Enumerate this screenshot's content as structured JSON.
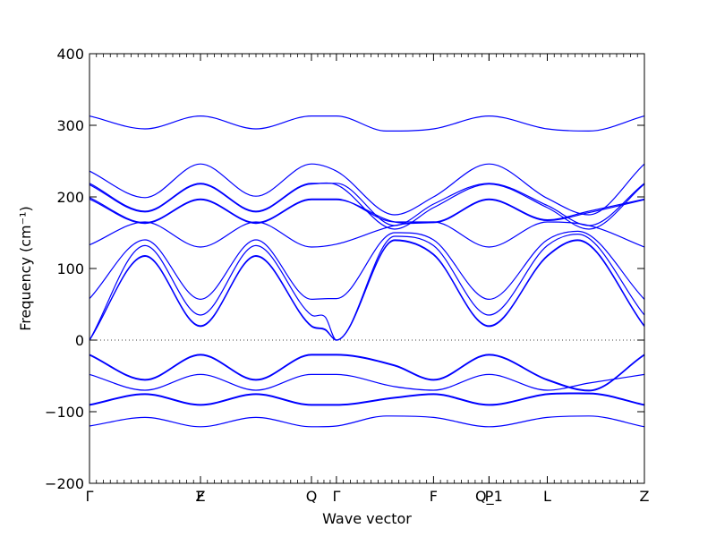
{
  "chart_data": {
    "type": "line",
    "xlabel": "Wave vector",
    "ylabel": "Frequency (cm⁻¹)",
    "ylim": [
      -200,
      400
    ],
    "yticks": [
      -200,
      -100,
      0,
      100,
      200,
      300,
      400
    ],
    "xlim": [
      0,
      1
    ],
    "grid": false,
    "zero_line": {
      "y": 0,
      "style": "dotted"
    },
    "line_color": "#0000ff",
    "high_symmetry_points": [
      {
        "label": "Γ",
        "x": 0.0
      },
      {
        "label": "Z",
        "x": 0.2
      },
      {
        "label": "F",
        "x": 0.2
      },
      {
        "label": "Q",
        "x": 0.4
      },
      {
        "label": "Γ",
        "x": 0.445
      },
      {
        "label": "F",
        "x": 0.62
      },
      {
        "label": "P",
        "x": 0.72
      },
      {
        "label": "Q_1",
        "x": 0.72
      },
      {
        "label": "L",
        "x": 0.825
      },
      {
        "label": "Z",
        "x": 1.0
      }
    ],
    "series": [
      {
        "x": [
          0,
          0.1,
          0.2,
          0.3,
          0.4,
          0.445,
          0.535,
          0.62,
          0.72,
          0.825,
          0.9,
          1.0
        ],
        "y": [
          313,
          295,
          313,
          295,
          313,
          313,
          292,
          295,
          313,
          295,
          292,
          313
        ]
      },
      {
        "x": [
          0,
          0.1,
          0.2,
          0.3,
          0.4,
          0.445,
          0.55,
          0.62,
          0.72,
          0.825,
          0.9,
          1.0
        ],
        "y": [
          236,
          199,
          246,
          201,
          246,
          236,
          175,
          200,
          246,
          198,
          175,
          246
        ]
      },
      {
        "x": [
          0,
          0.1,
          0.2,
          0.3,
          0.4,
          0.445,
          0.55,
          0.62,
          0.72,
          0.825,
          0.9,
          1.0
        ],
        "y": [
          219,
          180,
          219,
          180,
          219,
          219,
          160,
          190,
          219,
          188,
          160,
          219
        ]
      },
      {
        "x": [
          0,
          0.1,
          0.2,
          0.3,
          0.4,
          0.445,
          0.55,
          0.62,
          0.72,
          0.825,
          0.9,
          1.0
        ],
        "y": [
          217,
          179,
          218,
          179,
          218,
          217,
          155,
          185,
          218,
          185,
          155,
          218
        ]
      },
      {
        "x": [
          0,
          0.1,
          0.2,
          0.3,
          0.4,
          0.445,
          0.55,
          0.62,
          0.72,
          0.825,
          0.9,
          1.0
        ],
        "y": [
          199,
          164,
          197,
          164,
          197,
          197,
          165,
          165,
          197,
          168,
          180,
          197
        ]
      },
      {
        "x": [
          0,
          0.1,
          0.2,
          0.3,
          0.4,
          0.445,
          0.55,
          0.62,
          0.72,
          0.825,
          0.9,
          1.0
        ],
        "y": [
          197,
          163,
          196,
          163,
          196,
          196,
          165,
          164,
          196,
          167,
          178,
          196
        ]
      },
      {
        "x": [
          0,
          0.1,
          0.2,
          0.3,
          0.4,
          0.445,
          0.55,
          0.62,
          0.72,
          0.825,
          0.9,
          1.0
        ],
        "y": [
          133,
          165,
          130,
          165,
          130,
          134,
          160,
          165,
          130,
          165,
          160,
          130
        ]
      },
      {
        "x": [
          0,
          0.1,
          0.2,
          0.3,
          0.4,
          0.43,
          0.445,
          0.55,
          0.62,
          0.72,
          0.825,
          0.88,
          1.0
        ],
        "y": [
          58,
          140,
          57,
          140,
          57,
          58,
          58,
          150,
          140,
          57,
          140,
          152,
          57
        ]
      },
      {
        "x": [
          0,
          0.1,
          0.2,
          0.3,
          0.4,
          0.425,
          0.445,
          0.55,
          0.62,
          0.72,
          0.825,
          0.88,
          1.0
        ],
        "y": [
          0,
          132,
          35,
          132,
          35,
          32,
          0,
          145,
          132,
          35,
          132,
          148,
          35
        ]
      },
      {
        "x": [
          0,
          0.1,
          0.2,
          0.3,
          0.4,
          0.425,
          0.445,
          0.55,
          0.62,
          0.72,
          0.825,
          0.88,
          1.0
        ],
        "y": [
          0,
          118,
          20,
          118,
          20,
          15,
          0,
          140,
          120,
          20,
          118,
          140,
          20
        ]
      },
      {
        "x": [
          0,
          0.1,
          0.2,
          0.3,
          0.4,
          0.425,
          0.445,
          0.55,
          0.62,
          0.72,
          0.825,
          0.88,
          1.0
        ],
        "y": [
          0,
          117,
          19,
          117,
          19,
          14,
          0,
          139,
          119,
          19,
          117,
          139,
          19
        ]
      },
      {
        "x": [
          0,
          0.1,
          0.2,
          0.3,
          0.4,
          0.445,
          0.55,
          0.62,
          0.72,
          0.825,
          0.9,
          1.0
        ],
        "y": [
          -20,
          -55,
          -20,
          -55,
          -20,
          -20,
          -35,
          -55,
          -20,
          -55,
          -70,
          -20
        ]
      },
      {
        "x": [
          0,
          0.1,
          0.2,
          0.3,
          0.4,
          0.445,
          0.55,
          0.62,
          0.72,
          0.825,
          0.9,
          1.0
        ],
        "y": [
          -21,
          -56,
          -21,
          -56,
          -21,
          -21,
          -36,
          -56,
          -21,
          -56,
          -71,
          -21
        ]
      },
      {
        "x": [
          0,
          0.1,
          0.2,
          0.3,
          0.4,
          0.445,
          0.55,
          0.62,
          0.72,
          0.825,
          0.9,
          1.0
        ],
        "y": [
          -48,
          -70,
          -48,
          -70,
          -48,
          -48,
          -65,
          -70,
          -48,
          -70,
          -60,
          -48
        ]
      },
      {
        "x": [
          0,
          0.1,
          0.2,
          0.3,
          0.4,
          0.445,
          0.55,
          0.62,
          0.72,
          0.825,
          0.9,
          1.0
        ],
        "y": [
          -90,
          -75,
          -90,
          -75,
          -90,
          -90,
          -80,
          -75,
          -90,
          -75,
          -74,
          -90
        ]
      },
      {
        "x": [
          0,
          0.1,
          0.2,
          0.3,
          0.4,
          0.445,
          0.55,
          0.62,
          0.72,
          0.825,
          0.9,
          1.0
        ],
        "y": [
          -91,
          -76,
          -91,
          -76,
          -91,
          -91,
          -81,
          -76,
          -91,
          -76,
          -75,
          -91
        ]
      },
      {
        "x": [
          0,
          0.1,
          0.2,
          0.3,
          0.4,
          0.445,
          0.535,
          0.62,
          0.72,
          0.825,
          0.9,
          1.0
        ],
        "y": [
          -120,
          -108,
          -121,
          -108,
          -121,
          -120,
          -106,
          -108,
          -121,
          -108,
          -106,
          -121
        ]
      }
    ]
  }
}
